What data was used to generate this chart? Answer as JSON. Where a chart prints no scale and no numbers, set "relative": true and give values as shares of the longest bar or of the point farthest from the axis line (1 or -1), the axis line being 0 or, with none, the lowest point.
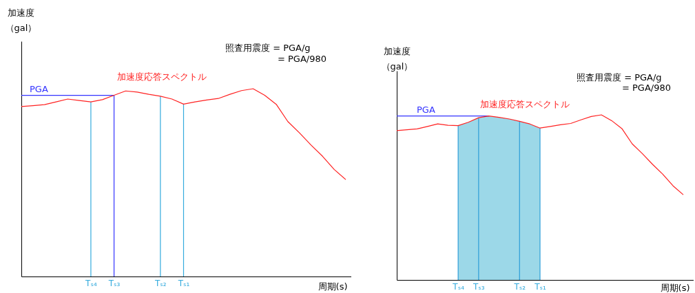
{
  "chart_data": [
    {
      "type": "line",
      "relative": true,
      "ylabel": "加速度（gal）",
      "xlabel": "周期(s)",
      "categories": [
        null,
        null,
        null,
        null,
        null,
        null,
        "Tₛ₄",
        null,
        "Tₛ₃",
        null,
        null,
        null,
        "Tₛ₂",
        null,
        "Tₛ₁",
        null,
        null,
        null,
        null,
        null,
        null,
        null,
        null,
        null,
        null,
        null,
        null,
        null,
        null
      ],
      "series": [
        {
          "name": "加速度応答スペクトル",
          "color": "#ff2020",
          "values": [
            0.905,
            0.91,
            0.915,
            0.93,
            0.945,
            0.937,
            0.93,
            0.942,
            0.965,
            0.988,
            0.982,
            0.97,
            0.96,
            0.945,
            0.918,
            0.93,
            0.94,
            0.948,
            0.97,
            0.99,
            1,
            0.965,
            0.917,
            0.825,
            0.765,
            0.7,
            0.64,
            0.57,
            0.516
          ]
        }
      ],
      "ref_lines": [
        {
          "axis": "y",
          "value": 0.965,
          "label": "PGA",
          "color": "#3333ff"
        },
        {
          "axis": "x",
          "value": "Tₛ₄",
          "color": "#33aadd"
        },
        {
          "axis": "x",
          "value": "Tₛ₃",
          "color": "#3333ff"
        },
        {
          "axis": "x",
          "value": "Tₛ₂",
          "color": "#33aadd"
        },
        {
          "axis": "x",
          "value": "Tₛ₁",
          "color": "#33aadd"
        }
      ],
      "annotations": [
        "照査用震度 = PGA/g",
        "= PGA/980"
      ]
    },
    {
      "type": "line",
      "relative": true,
      "ylabel": "加速度（gal）",
      "xlabel": "周期(s)",
      "categories": [
        null,
        null,
        null,
        null,
        null,
        null,
        "Tₛ₄",
        null,
        "Tₛ₃",
        null,
        null,
        null,
        "Tₛ₂",
        null,
        "Tₛ₁",
        null,
        null,
        null,
        null,
        null,
        null,
        null,
        null,
        null,
        null,
        null,
        null,
        null,
        null
      ],
      "series": [
        {
          "name": "加速度応答スペクトル",
          "color": "#ff2020",
          "values": [
            0.905,
            0.91,
            0.915,
            0.93,
            0.945,
            0.937,
            0.935,
            0.955,
            0.983,
            0.993,
            0.985,
            0.975,
            0.961,
            0.945,
            0.92,
            0.93,
            0.94,
            0.948,
            0.97,
            0.99,
            1,
            0.965,
            0.917,
            0.825,
            0.765,
            0.7,
            0.64,
            0.57,
            0.516
          ]
        }
      ],
      "bands": [
        {
          "axis": "x",
          "from": "Tₛ₄",
          "to": "Tₛ₁",
          "color": "#9cd8e8"
        }
      ],
      "ref_lines": [
        {
          "axis": "y",
          "value": 0.993,
          "label": "PGA",
          "color": "#3333ff"
        },
        {
          "axis": "x",
          "value": "Tₛ₄",
          "color": "#2d9ed8"
        },
        {
          "axis": "x",
          "value": "Tₛ₃",
          "color": "#2d9ed8"
        },
        {
          "axis": "x",
          "value": "Tₛ₂",
          "color": "#2d9ed8"
        },
        {
          "axis": "x",
          "value": "Tₛ₁",
          "color": "#2d9ed8"
        }
      ],
      "annotations": [
        "照査用震度 = PGA/g",
        "= PGA/980"
      ]
    }
  ]
}
